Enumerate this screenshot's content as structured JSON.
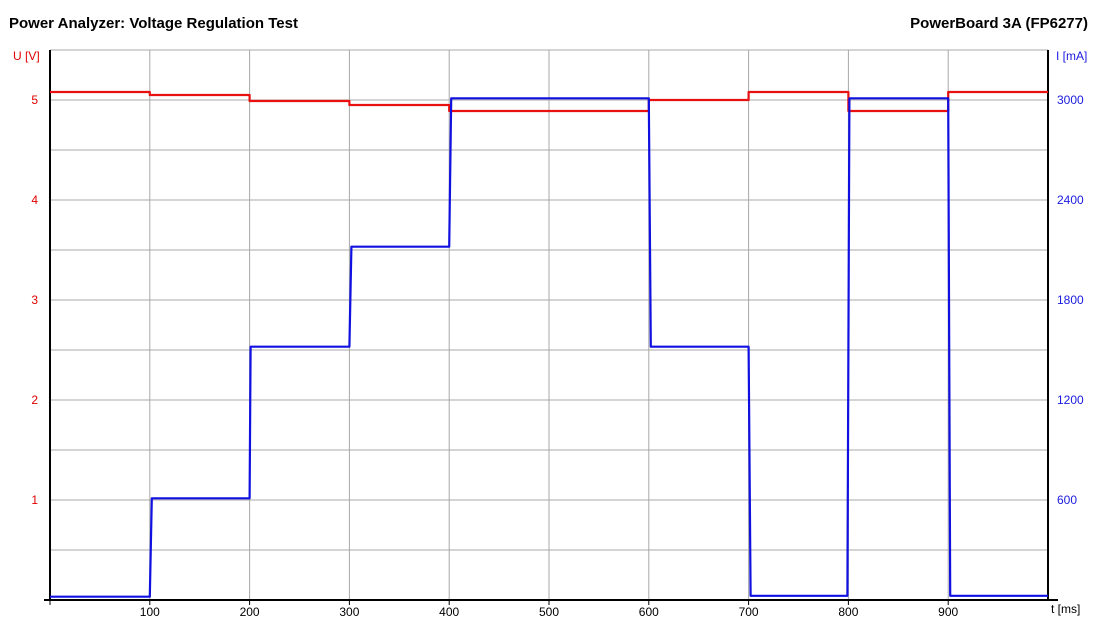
{
  "header": {
    "title": "Power Analyzer: Voltage Regulation Test",
    "device": "PowerBoard 3A (FP6277)"
  },
  "chart_data": {
    "type": "line",
    "title": "Power Analyzer: Voltage Regulation Test",
    "subtitle": "PowerBoard 3A (FP6277)",
    "xlabel": "t [ms]",
    "ylabel_left": "U [V]",
    "ylabel_right": "I [mA]",
    "xlim": [
      0,
      1000
    ],
    "ylim_left": [
      0,
      5.5
    ],
    "ylim_right": [
      0,
      3300
    ],
    "x_ticks": [
      100,
      200,
      300,
      400,
      500,
      600,
      700,
      800,
      900
    ],
    "y_left_ticks": [
      1,
      2,
      3,
      4,
      5
    ],
    "y_right_ticks": [
      600,
      1200,
      1800,
      2400,
      3000
    ],
    "grid": true,
    "colors": {
      "voltage": "#e81010",
      "current": "#1010e0"
    },
    "series": [
      {
        "axis": "left",
        "unit": "V",
        "x": [
          0,
          100,
          100,
          200,
          200,
          300,
          300,
          400,
          400,
          600,
          600,
          700,
          700,
          800,
          800,
          900,
          900,
          1000
        ],
        "values": [
          5.08,
          5.08,
          5.05,
          5.05,
          4.99,
          4.99,
          4.95,
          4.95,
          4.89,
          4.89,
          5.0,
          5.0,
          5.08,
          5.08,
          4.89,
          4.89,
          5.08,
          5.08
        ]
      },
      {
        "axis": "right",
        "unit": "mA",
        "x": [
          0,
          100,
          102,
          200,
          201,
          300,
          302,
          400,
          402,
          600,
          602,
          700,
          702,
          799,
          801,
          900,
          902,
          1000
        ],
        "values": [
          20,
          20,
          610,
          610,
          1520,
          1520,
          2120,
          2120,
          3010,
          3010,
          1520,
          1520,
          25,
          25,
          3010,
          3010,
          25,
          25
        ]
      }
    ]
  }
}
